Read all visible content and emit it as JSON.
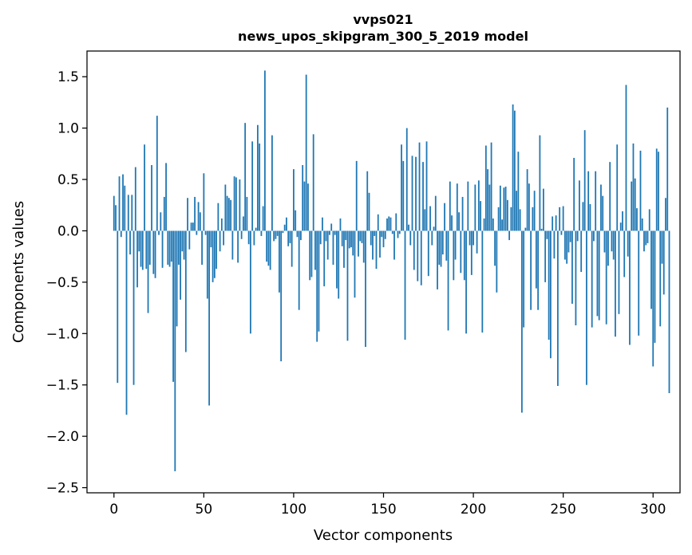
{
  "chart_data": {
    "type": "bar",
    "title": [
      "vvps021",
      "news_upos_skipgram_300_5_2019 model"
    ],
    "xlabel": "Vector components",
    "ylabel": "Components values",
    "xlim": [
      -15,
      315
    ],
    "ylim": [
      -2.55,
      1.75
    ],
    "xticks": [
      0,
      50,
      100,
      150,
      200,
      250,
      300
    ],
    "xtick_labels": [
      "0",
      "50",
      "100",
      "150",
      "200",
      "250",
      "300"
    ],
    "yticks": [
      1.5,
      1.0,
      0.5,
      0.0,
      -0.5,
      -1.0,
      -1.5,
      -2.0,
      -2.5
    ],
    "ytick_labels": [
      "1.5",
      "1.0",
      "0.5",
      "0.0",
      "−0.5",
      "−1.0",
      "−1.5",
      "−2.0",
      "−2.5"
    ],
    "grid": false,
    "color": "#1f77b4",
    "values": [
      0.34,
      0.25,
      -1.48,
      0.53,
      -0.06,
      0.55,
      0.44,
      -1.79,
      0.35,
      -0.23,
      0.35,
      -1.5,
      0.62,
      -0.55,
      -0.2,
      -0.35,
      -0.38,
      0.84,
      -0.37,
      -0.8,
      -0.33,
      0.64,
      -0.42,
      -0.46,
      1.12,
      -0.04,
      0.18,
      -0.36,
      0.33,
      0.66,
      -0.33,
      -0.35,
      -0.3,
      -1.47,
      -2.34,
      -0.93,
      -0.33,
      -0.67,
      -0.2,
      -0.28,
      -1.18,
      0.32,
      -0.18,
      0.08,
      0.08,
      0.33,
      -0.04,
      0.28,
      0.18,
      -0.33,
      0.56,
      -0.04,
      -0.66,
      -1.7,
      -0.16,
      -0.5,
      -0.46,
      -0.37,
      0.27,
      -0.2,
      0.12,
      -0.14,
      0.45,
      0.34,
      0.32,
      0.3,
      -0.28,
      0.53,
      0.52,
      -0.31,
      0.5,
      -0.08,
      0.14,
      1.05,
      0.33,
      -0.13,
      -1.0,
      0.87,
      -0.14,
      0.03,
      1.03,
      0.85,
      -0.05,
      0.24,
      1.56,
      -0.3,
      -0.34,
      -0.38,
      0.93,
      -0.1,
      -0.08,
      -0.05,
      -0.6,
      -1.27,
      -0.02,
      0.06,
      0.13,
      -0.15,
      -0.12,
      -0.35,
      0.6,
      0.2,
      -0.06,
      -0.77,
      -0.09,
      0.64,
      0.48,
      1.52,
      0.46,
      -0.48,
      -0.45,
      0.94,
      -0.38,
      -1.08,
      -0.98,
      -0.13,
      0.13,
      -0.54,
      -0.1,
      -0.28,
      -0.04,
      0.07,
      -0.33,
      -0.04,
      -0.56,
      -0.66,
      0.12,
      -0.15,
      -0.36,
      -0.09,
      -1.07,
      -0.17,
      -0.16,
      -0.24,
      -0.65,
      0.68,
      -0.25,
      -0.1,
      -0.12,
      -0.31,
      -1.13,
      0.58,
      0.37,
      -0.14,
      -0.28,
      -0.05,
      -0.37,
      0.16,
      -0.26,
      -0.06,
      -0.16,
      -0.08,
      0.12,
      0.14,
      0.13,
      -0.03,
      -0.28,
      0.17,
      -0.07,
      -0.03,
      0.84,
      0.68,
      -1.06,
      1.0,
      0.06,
      -0.14,
      0.73,
      -0.38,
      0.72,
      -0.49,
      0.86,
      -0.53,
      0.67,
      0.21,
      0.87,
      -0.44,
      0.24,
      -0.14,
      0.04,
      0.34,
      -0.57,
      -0.33,
      -0.35,
      -0.23,
      0.27,
      -0.29,
      -0.97,
      0.48,
      0.15,
      -0.48,
      -0.28,
      0.46,
      0.18,
      -0.41,
      0.33,
      -0.48,
      -1.0,
      0.48,
      -0.14,
      -0.43,
      -0.14,
      0.45,
      -0.22,
      0.49,
      0.29,
      -0.99,
      0.12,
      0.83,
      0.6,
      0.45,
      0.86,
      0.12,
      -0.34,
      -0.6,
      0.23,
      0.44,
      0.11,
      0.42,
      0.43,
      0.3,
      -0.09,
      0.23,
      1.23,
      1.17,
      0.39,
      0.77,
      0.21,
      -1.77,
      -0.94,
      0.03,
      0.6,
      0.46,
      -0.77,
      0.23,
      0.39,
      -0.56,
      -0.77,
      0.93,
      0.02,
      0.41,
      -0.5,
      -0.08,
      -1.06,
      -1.24,
      0.14,
      -0.27,
      0.15,
      -1.51,
      0.23,
      -0.04,
      0.24,
      -0.28,
      -0.32,
      -0.21,
      -0.11,
      -0.71,
      0.71,
      -0.92,
      -0.1,
      0.49,
      -0.4,
      0.28,
      0.98,
      -1.5,
      0.58,
      0.26,
      -0.94,
      -0.1,
      0.58,
      -0.83,
      -0.87,
      0.45,
      0.34,
      -0.21,
      -0.91,
      -0.34,
      0.67,
      -0.2,
      -0.28,
      -1.03,
      0.84,
      -0.81,
      0.08,
      0.19,
      -0.45,
      1.42,
      -0.25,
      -1.11,
      0.48,
      0.85,
      0.51,
      0.22,
      -1.02,
      0.78,
      0.12,
      -0.2,
      -0.14,
      -0.12,
      0.21,
      -0.76,
      -1.32,
      -1.09,
      0.8,
      0.77,
      -0.93,
      -0.32,
      -0.62,
      0.32,
      1.2,
      -1.58
    ]
  }
}
